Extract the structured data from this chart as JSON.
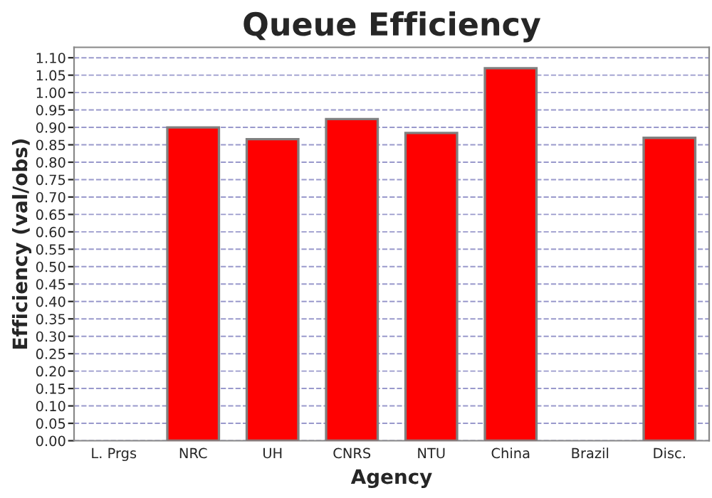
{
  "chart_data": {
    "type": "bar",
    "title": "Queue Efficiency",
    "xlabel": "Agency",
    "ylabel": "Efficiency (val/obs)",
    "categories": [
      "L. Prgs",
      "NRC",
      "UH",
      "CNRS",
      "NTU",
      "China",
      "Brazil",
      "Disc."
    ],
    "values": [
      null,
      0.9,
      0.866,
      0.924,
      0.884,
      1.07,
      null,
      0.87
    ],
    "color": "#ff0000",
    "ylim": [
      0,
      1.13
    ],
    "yticks": [
      {
        "value": 0,
        "label": "0.00"
      },
      {
        "value": 0.05,
        "label": "0.05"
      },
      {
        "value": 0.1,
        "label": "0.10"
      },
      {
        "value": 0.15,
        "label": "0.15"
      },
      {
        "value": 0.2,
        "label": "0.20"
      },
      {
        "value": 0.25,
        "label": "0.25"
      },
      {
        "value": 0.3,
        "label": "0.30"
      },
      {
        "value": 0.35,
        "label": "0.35"
      },
      {
        "value": 0.4,
        "label": "0.40"
      },
      {
        "value": 0.45,
        "label": "0.45"
      },
      {
        "value": 0.5,
        "label": "0.50"
      },
      {
        "value": 0.55,
        "label": "0.55"
      },
      {
        "value": 0.6,
        "label": "0.60"
      },
      {
        "value": 0.65,
        "label": "0.65"
      },
      {
        "value": 0.7,
        "label": "0.70"
      },
      {
        "value": 0.75,
        "label": "0.75"
      },
      {
        "value": 0.8,
        "label": "0.80"
      },
      {
        "value": 0.85,
        "label": "0.85"
      },
      {
        "value": 0.9,
        "label": "0.90"
      },
      {
        "value": 0.95,
        "label": "0.95"
      },
      {
        "value": 1.0,
        "label": "1.00"
      },
      {
        "value": 1.05,
        "label": "1.05"
      },
      {
        "value": 1.1,
        "label": "1.10"
      }
    ],
    "grid": "y"
  }
}
